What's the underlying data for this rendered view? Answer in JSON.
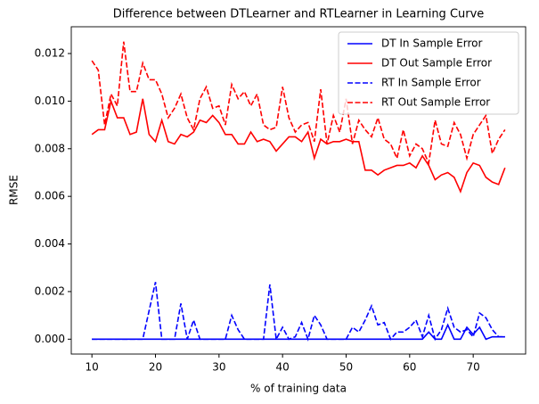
{
  "chart_data": {
    "type": "line",
    "title": "Difference between DTLearner and RTLearner in Learning Curve",
    "x_label": "% of training data",
    "y_label": "RMSE",
    "x": [
      10,
      11,
      12,
      13,
      14,
      15,
      16,
      17,
      18,
      19,
      20,
      21,
      22,
      23,
      24,
      25,
      26,
      27,
      28,
      29,
      30,
      31,
      32,
      33,
      34,
      35,
      36,
      37,
      38,
      39,
      40,
      41,
      42,
      43,
      44,
      45,
      46,
      47,
      48,
      49,
      50,
      51,
      52,
      53,
      54,
      55,
      56,
      57,
      58,
      59,
      60,
      61,
      62,
      63,
      64,
      65,
      66,
      67,
      68,
      69,
      70,
      71,
      72,
      73,
      74,
      75
    ],
    "series": [
      {
        "name": "DT In Sample Error",
        "color": "#0000ff",
        "linestyle": "solid",
        "values": [
          0,
          0,
          0,
          0,
          0,
          0,
          0,
          0,
          0,
          0,
          0,
          0,
          0,
          0,
          0,
          0,
          0,
          0,
          0,
          0,
          0,
          0,
          0,
          0,
          0,
          0,
          0,
          0,
          0,
          0,
          0,
          0,
          0,
          0,
          0,
          0,
          0,
          0,
          0,
          0,
          0,
          0,
          0,
          0,
          0,
          0,
          0,
          0,
          0,
          0,
          0,
          0,
          0,
          0.0003,
          0,
          0,
          0.0006,
          0,
          0,
          0.0005,
          0.0002,
          0.0005,
          0,
          0.0001,
          0.0001,
          0.0001
        ]
      },
      {
        "name": "DT Out Sample Error",
        "color": "#ff0000",
        "linestyle": "solid",
        "values": [
          0.0086,
          0.0088,
          0.0088,
          0.01,
          0.0093,
          0.0093,
          0.0086,
          0.0087,
          0.0101,
          0.0086,
          0.0083,
          0.0092,
          0.0083,
          0.0082,
          0.0086,
          0.0085,
          0.0087,
          0.0092,
          0.0091,
          0.0094,
          0.0091,
          0.0086,
          0.0086,
          0.0082,
          0.0082,
          0.0087,
          0.0083,
          0.0084,
          0.0083,
          0.0079,
          0.0082,
          0.0085,
          0.0085,
          0.0083,
          0.0087,
          0.0076,
          0.0084,
          0.0082,
          0.0083,
          0.0083,
          0.0084,
          0.0083,
          0.0083,
          0.0071,
          0.0071,
          0.0069,
          0.0071,
          0.0072,
          0.0073,
          0.0073,
          0.0074,
          0.0072,
          0.0077,
          0.0073,
          0.0067,
          0.0069,
          0.007,
          0.0068,
          0.0062,
          0.007,
          0.0074,
          0.0073,
          0.0068,
          0.0066,
          0.0065,
          0.0072
        ]
      },
      {
        "name": "RT In Sample Error",
        "color": "#0000ff",
        "linestyle": "dashed",
        "values": [
          0,
          0,
          0,
          0,
          0,
          0,
          0,
          0,
          0,
          0.0012,
          0.0024,
          0,
          0,
          0,
          0.0015,
          0,
          0.0008,
          0,
          0,
          0,
          0,
          0,
          0.001,
          0.0004,
          0,
          0,
          0,
          0,
          0.0023,
          0,
          0.0005,
          0,
          0.0001,
          0.0007,
          0,
          0.001,
          0.0006,
          0,
          0,
          0,
          0,
          0.0005,
          0.0003,
          0.0008,
          0.0014,
          0.0006,
          0.0007,
          0,
          0.0003,
          0.0003,
          0.0005,
          0.0008,
          0.0001,
          0.001,
          0,
          0.0004,
          0.0013,
          0.0005,
          0.0003,
          0.0004,
          0.0001,
          0.0011,
          0.0009,
          0.0004,
          0.0001,
          0.0001
        ]
      },
      {
        "name": "RT Out Sample Error",
        "color": "#ff0000",
        "linestyle": "dashed",
        "values": [
          0.0117,
          0.0113,
          0.009,
          0.0103,
          0.0098,
          0.0125,
          0.0104,
          0.0104,
          0.0116,
          0.0109,
          0.0109,
          0.0103,
          0.0093,
          0.0097,
          0.0103,
          0.0093,
          0.0088,
          0.0101,
          0.0106,
          0.0097,
          0.0098,
          0.009,
          0.0107,
          0.0101,
          0.0104,
          0.0098,
          0.0103,
          0.009,
          0.0088,
          0.0089,
          0.0106,
          0.0093,
          0.0087,
          0.009,
          0.0091,
          0.0083,
          0.0105,
          0.0082,
          0.0094,
          0.0087,
          0.0101,
          0.0082,
          0.0092,
          0.0088,
          0.0085,
          0.0093,
          0.0084,
          0.0082,
          0.0076,
          0.0088,
          0.0077,
          0.0082,
          0.008,
          0.0074,
          0.0092,
          0.0082,
          0.0081,
          0.0091,
          0.0086,
          0.0076,
          0.0086,
          0.009,
          0.0094,
          0.0078,
          0.0084,
          0.0088
        ]
      }
    ],
    "xlim": [
      6.75,
      78.25
    ],
    "xticks": [
      10,
      20,
      30,
      40,
      50,
      60,
      70
    ],
    "ylim": [
      -0.000625,
      0.013125
    ],
    "yticks": [
      {
        "value": 0,
        "label": "0.000"
      },
      {
        "value": 0.002,
        "label": "0.002"
      },
      {
        "value": 0.004,
        "label": "0.004"
      },
      {
        "value": 0.006,
        "label": "0.006"
      },
      {
        "value": 0.008,
        "label": "0.008"
      },
      {
        "value": 0.01,
        "label": "0.010"
      },
      {
        "value": 0.012,
        "label": "0.012"
      }
    ],
    "grid": false,
    "legend": "upper right"
  }
}
